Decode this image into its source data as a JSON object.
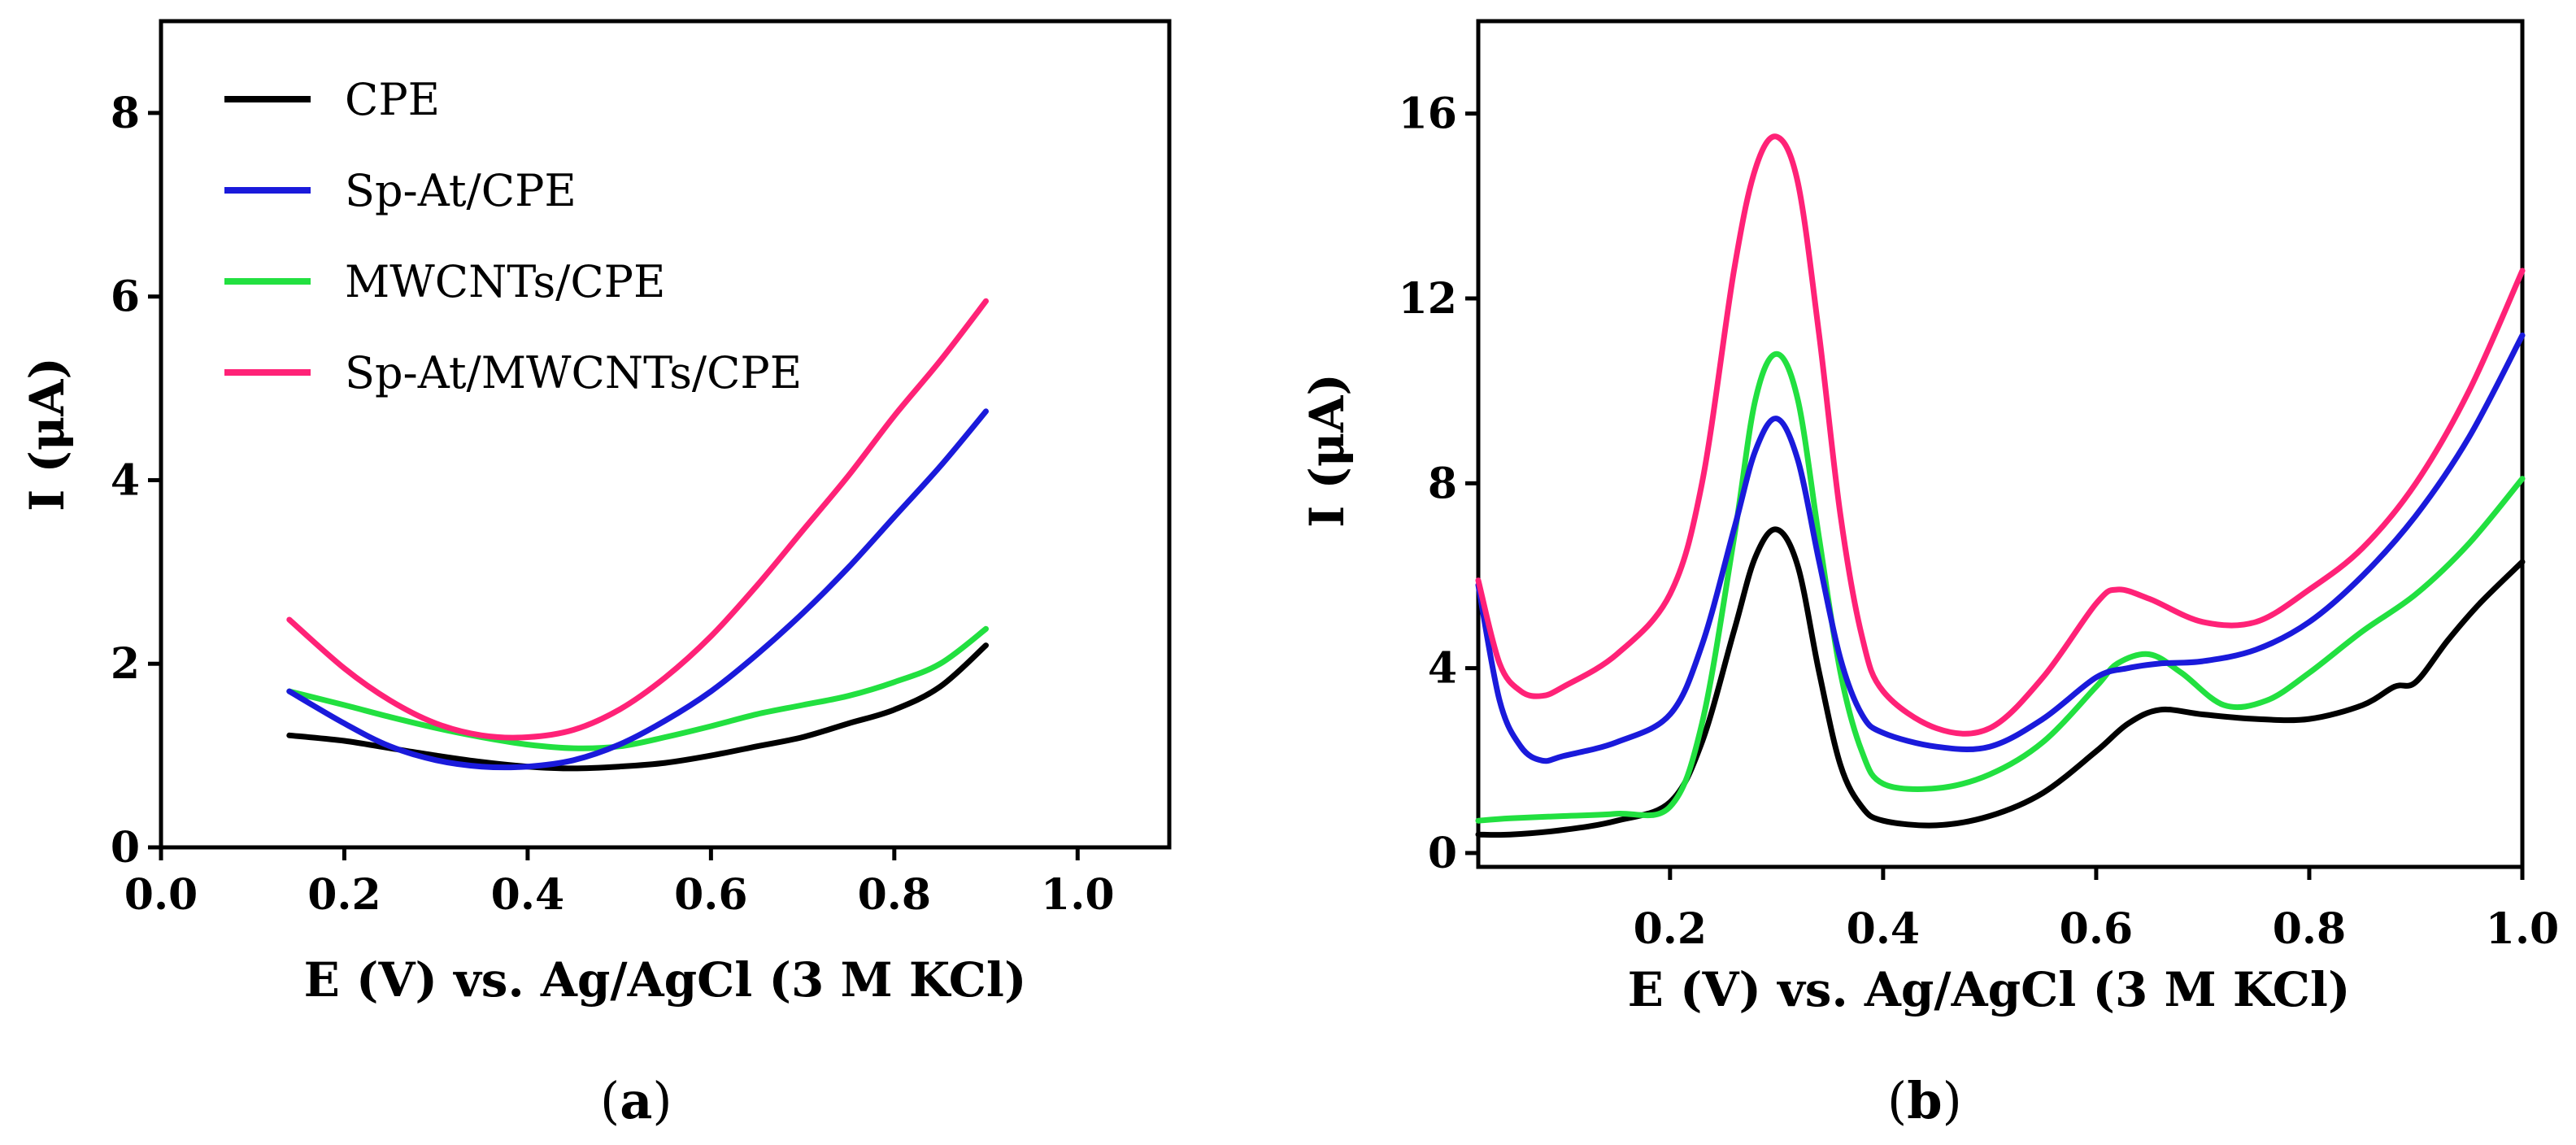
{
  "chart_data": [
    {
      "panel": "(a)",
      "panel_letter": "a",
      "type": "line",
      "xlabel": "E (V) vs. Ag/AgCl (3 M KCl)",
      "ylabel": "I (μA)",
      "xlim": [
        0.0,
        1.1
      ],
      "ylim": [
        0,
        9
      ],
      "xticks": [
        0.0,
        0.2,
        0.4,
        0.6,
        0.8,
        1.0
      ],
      "xtick_labels": [
        "0.0",
        "0.2",
        "0.4",
        "0.6",
        "0.8",
        "1.0"
      ],
      "yticks": [
        0,
        2,
        4,
        6,
        8
      ],
      "ytick_labels": [
        "0",
        "2",
        "4",
        "6",
        "8"
      ],
      "legend_position": "top-left",
      "series": [
        {
          "name": "CPE",
          "color": "#000000",
          "x": [
            0.14,
            0.2,
            0.25,
            0.3,
            0.35,
            0.4,
            0.45,
            0.5,
            0.55,
            0.6,
            0.65,
            0.7,
            0.75,
            0.8,
            0.85,
            0.9
          ],
          "y": [
            1.22,
            1.16,
            1.08,
            1.0,
            0.93,
            0.88,
            0.86,
            0.88,
            0.92,
            1.0,
            1.1,
            1.2,
            1.35,
            1.5,
            1.75,
            2.2
          ]
        },
        {
          "name": "Sp-At/CPE",
          "color": "#1a1adb",
          "x": [
            0.14,
            0.2,
            0.25,
            0.3,
            0.35,
            0.4,
            0.45,
            0.5,
            0.55,
            0.6,
            0.65,
            0.7,
            0.75,
            0.8,
            0.85,
            0.9
          ],
          "y": [
            1.7,
            1.35,
            1.1,
            0.95,
            0.88,
            0.88,
            0.95,
            1.12,
            1.38,
            1.7,
            2.1,
            2.55,
            3.05,
            3.6,
            4.15,
            4.75
          ]
        },
        {
          "name": "MWCNTs/CPE",
          "color": "#22e040",
          "x": [
            0.14,
            0.2,
            0.25,
            0.3,
            0.35,
            0.4,
            0.45,
            0.5,
            0.55,
            0.6,
            0.65,
            0.7,
            0.75,
            0.8,
            0.85,
            0.9
          ],
          "y": [
            1.7,
            1.55,
            1.42,
            1.3,
            1.2,
            1.12,
            1.08,
            1.1,
            1.2,
            1.32,
            1.45,
            1.55,
            1.65,
            1.8,
            2.0,
            2.38
          ]
        },
        {
          "name": "Sp-At/MWCNTs/CPE",
          "color": "#ff2277",
          "x": [
            0.14,
            0.2,
            0.25,
            0.3,
            0.35,
            0.4,
            0.45,
            0.5,
            0.55,
            0.6,
            0.65,
            0.7,
            0.75,
            0.8,
            0.85,
            0.9
          ],
          "y": [
            2.48,
            1.95,
            1.6,
            1.35,
            1.22,
            1.2,
            1.28,
            1.5,
            1.85,
            2.3,
            2.85,
            3.45,
            4.05,
            4.7,
            5.3,
            5.95
          ]
        }
      ]
    },
    {
      "panel": "(b)",
      "panel_letter": "b",
      "type": "line",
      "xlabel": "E (V) vs. Ag/AgCl (3 M KCl)",
      "ylabel": "I (μA)",
      "xlim": [
        0.02,
        1.0
      ],
      "ylim": [
        -0.3,
        18
      ],
      "xticks": [
        0.2,
        0.4,
        0.6,
        0.8,
        1.0
      ],
      "xtick_labels": [
        "0.2",
        "0.4",
        "0.6",
        "0.8",
        "1.0"
      ],
      "yticks": [
        0,
        4,
        8,
        12,
        16
      ],
      "ytick_labels": [
        "0",
        "4",
        "8",
        "12",
        "16"
      ],
      "series": [
        {
          "name": "CPE",
          "color": "#000000",
          "x": [
            0.02,
            0.05,
            0.1,
            0.15,
            0.2,
            0.23,
            0.26,
            0.28,
            0.3,
            0.32,
            0.34,
            0.36,
            0.38,
            0.4,
            0.45,
            0.5,
            0.55,
            0.6,
            0.63,
            0.66,
            0.7,
            0.75,
            0.8,
            0.85,
            0.88,
            0.9,
            0.93,
            0.96,
            1.0
          ],
          "y": [
            0.4,
            0.4,
            0.5,
            0.7,
            1.1,
            2.4,
            4.8,
            6.4,
            7.0,
            6.2,
            3.9,
            1.9,
            1.0,
            0.7,
            0.6,
            0.8,
            1.3,
            2.2,
            2.8,
            3.1,
            3.0,
            2.9,
            2.9,
            3.2,
            3.6,
            3.7,
            4.6,
            5.4,
            6.3
          ]
        },
        {
          "name": "Sp-At/CPE",
          "color": "#1a1adb",
          "x": [
            0.02,
            0.04,
            0.06,
            0.08,
            0.1,
            0.15,
            0.2,
            0.23,
            0.26,
            0.28,
            0.3,
            0.32,
            0.34,
            0.36,
            0.38,
            0.4,
            0.45,
            0.5,
            0.55,
            0.6,
            0.63,
            0.66,
            0.7,
            0.75,
            0.8,
            0.85,
            0.9,
            0.95,
            1.0
          ],
          "y": [
            5.8,
            3.3,
            2.3,
            2.0,
            2.1,
            2.4,
            3.0,
            4.5,
            7.0,
            8.7,
            9.4,
            8.5,
            6.3,
            4.2,
            3.0,
            2.6,
            2.3,
            2.3,
            2.9,
            3.8,
            4.0,
            4.1,
            4.15,
            4.4,
            5.0,
            6.0,
            7.3,
            9.0,
            11.2
          ]
        },
        {
          "name": "MWCNTs/CPE",
          "color": "#22e040",
          "x": [
            0.02,
            0.05,
            0.1,
            0.15,
            0.2,
            0.23,
            0.26,
            0.28,
            0.3,
            0.32,
            0.34,
            0.36,
            0.38,
            0.4,
            0.45,
            0.5,
            0.55,
            0.6,
            0.62,
            0.65,
            0.68,
            0.72,
            0.76,
            0.8,
            0.85,
            0.9,
            0.95,
            1.0
          ],
          "y": [
            0.7,
            0.75,
            0.8,
            0.85,
            1.0,
            2.8,
            6.8,
            9.8,
            10.8,
            9.8,
            6.8,
            3.9,
            2.2,
            1.5,
            1.4,
            1.7,
            2.4,
            3.6,
            4.1,
            4.3,
            3.9,
            3.2,
            3.3,
            3.9,
            4.8,
            5.6,
            6.7,
            8.1
          ]
        },
        {
          "name": "Sp-At/MWCNTs/CPE",
          "color": "#ff2277",
          "x": [
            0.02,
            0.04,
            0.06,
            0.08,
            0.1,
            0.15,
            0.2,
            0.23,
            0.26,
            0.28,
            0.3,
            0.32,
            0.34,
            0.36,
            0.38,
            0.4,
            0.45,
            0.5,
            0.55,
            0.6,
            0.62,
            0.65,
            0.7,
            0.75,
            0.8,
            0.85,
            0.9,
            0.95,
            1.0
          ],
          "y": [
            5.9,
            4.1,
            3.5,
            3.4,
            3.6,
            4.3,
            5.6,
            8.0,
            12.6,
            14.8,
            15.5,
            14.5,
            11.2,
            7.3,
            4.7,
            3.5,
            2.7,
            2.7,
            3.8,
            5.4,
            5.7,
            5.5,
            5.0,
            5.0,
            5.7,
            6.6,
            8.0,
            10.0,
            12.6
          ]
        }
      ]
    }
  ]
}
